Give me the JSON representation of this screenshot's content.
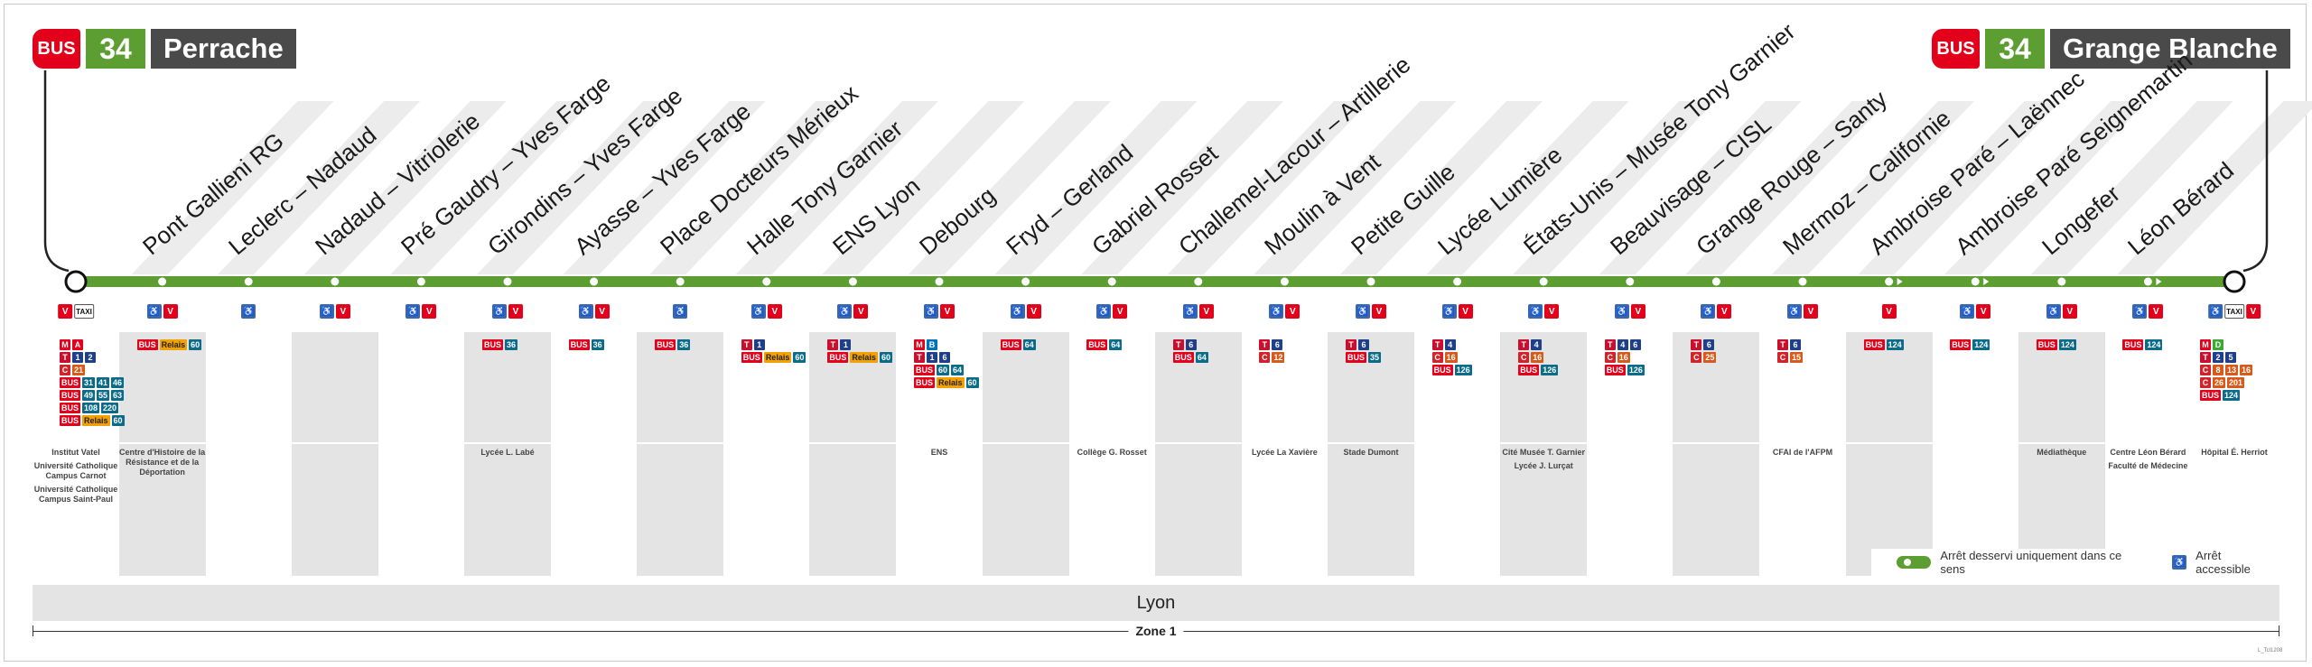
{
  "header_left": {
    "bus": "BUS",
    "line": "34",
    "destination": "Perrache"
  },
  "header_right": {
    "bus": "BUS",
    "line": "34",
    "destination": "Grange Blanche"
  },
  "colors": {
    "line": "#5c9e32",
    "bus": "#e2001a",
    "metro_A": "#e2001a",
    "metro_B": "#0072bc",
    "metro_D": "#3aaa35",
    "tram": "#c8102e",
    "access": "#3a66b0"
  },
  "terminus_left": {
    "connections": [
      [
        "M",
        "A"
      ],
      [
        "T",
        "1",
        "2"
      ],
      [
        "C",
        "21"
      ],
      [
        "BUS",
        "31",
        "41",
        "46"
      ],
      [
        "BUS",
        "49",
        "55",
        "63"
      ],
      [
        "BUS",
        "108",
        "220"
      ],
      [
        "BUS",
        "Relais",
        "60"
      ]
    ],
    "places": [
      "Institut Vatel",
      "Université Catholique Campus Carnot",
      "Université Catholique Campus Saint-Paul"
    ]
  },
  "terminus_right": {
    "connections": [
      [
        "M",
        "D"
      ],
      [
        "T",
        "2",
        "5"
      ],
      [
        "C",
        "8",
        "13",
        "16"
      ],
      [
        "C",
        "26",
        "201"
      ],
      [
        "BUS",
        "124"
      ]
    ],
    "places": [
      "Hôpital É. Herriot"
    ]
  },
  "stops": [
    {
      "name": "Pont Gallieni RG",
      "connections": [
        [
          "BUS",
          "Relais",
          "60"
        ]
      ],
      "places": [
        "Centre d'Histoire de la Résistance et de la Déportation"
      ]
    },
    {
      "name": "Leclerc – Nadaud",
      "connections": [],
      "places": []
    },
    {
      "name": "Nadaud – Vitriolerie",
      "connections": [],
      "places": []
    },
    {
      "name": "Pré Gaudry – Yves Farge",
      "connections": [],
      "places": []
    },
    {
      "name": "Girondins – Yves Farge",
      "connections": [
        [
          "BUS",
          "36"
        ]
      ],
      "places": [
        "Lycée L. Labé"
      ]
    },
    {
      "name": "Ayasse – Yves Farge",
      "connections": [
        [
          "BUS",
          "36"
        ]
      ],
      "places": []
    },
    {
      "name": "Place Docteurs Mérieux",
      "connections": [
        [
          "BUS",
          "36"
        ]
      ],
      "places": []
    },
    {
      "name": "Halle Tony Garnier",
      "connections": [
        [
          "T",
          "1"
        ],
        [
          "BUS",
          "Relais",
          "60"
        ]
      ],
      "places": []
    },
    {
      "name": "ENS Lyon",
      "connections": [
        [
          "T",
          "1"
        ],
        [
          "BUS",
          "Relais",
          "60"
        ]
      ],
      "places": []
    },
    {
      "name": "Debourg",
      "connections": [
        [
          "M",
          "B"
        ],
        [
          "T",
          "1",
          "6"
        ],
        [
          "BUS",
          "60",
          "64"
        ],
        [
          "BUS",
          "Relais",
          "60"
        ]
      ],
      "places": [
        "ENS"
      ]
    },
    {
      "name": "Fryd – Gerland",
      "connections": [
        [
          "BUS",
          "64"
        ]
      ],
      "places": []
    },
    {
      "name": "Gabriel Rosset",
      "connections": [
        [
          "BUS",
          "64"
        ]
      ],
      "places": [
        "Collège G. Rosset"
      ]
    },
    {
      "name": "Challemel-Lacour – Artillerie",
      "connections": [
        [
          "T",
          "6"
        ],
        [
          "BUS",
          "64"
        ]
      ],
      "places": []
    },
    {
      "name": "Moulin à Vent",
      "connections": [
        [
          "T",
          "6"
        ],
        [
          "C",
          "12"
        ]
      ],
      "places": [
        "Lycée La Xavière"
      ]
    },
    {
      "name": "Petite Guille",
      "connections": [
        [
          "T",
          "6"
        ],
        [
          "BUS",
          "35"
        ]
      ],
      "places": [
        "Stade Dumont"
      ]
    },
    {
      "name": "Lycée Lumière",
      "connections": [
        [
          "T",
          "4"
        ],
        [
          "C",
          "16"
        ],
        [
          "BUS",
          "126"
        ]
      ],
      "places": []
    },
    {
      "name": "États-Unis – Musée Tony Garnier",
      "connections": [
        [
          "T",
          "4"
        ],
        [
          "C",
          "16"
        ],
        [
          "BUS",
          "126"
        ]
      ],
      "places": [
        "Cité Musée T. Garnier",
        "Lycée J. Lurçat"
      ]
    },
    {
      "name": "Beauvisage – CISL",
      "connections": [
        [
          "T",
          "4",
          "6"
        ],
        [
          "C",
          "16"
        ],
        [
          "BUS",
          "126"
        ]
      ],
      "places": []
    },
    {
      "name": "Grange Rouge – Santy",
      "connections": [
        [
          "T",
          "6"
        ],
        [
          "C",
          "25"
        ]
      ],
      "places": []
    },
    {
      "name": "Mermoz – Californie",
      "connections": [
        [
          "T",
          "6"
        ],
        [
          "C",
          "15"
        ]
      ],
      "places": [
        "CFAI de l'AFPM"
      ]
    },
    {
      "name": "Ambroise Paré – Laënnec",
      "connections": [
        [
          "BUS",
          "124"
        ]
      ],
      "places": []
    },
    {
      "name": "Ambroise Paré Seignemartin",
      "connections": [
        [
          "BUS",
          "124"
        ]
      ],
      "places": []
    },
    {
      "name": "Longefer",
      "connections": [
        [
          "BUS",
          "124"
        ]
      ],
      "places": [
        "Médiathèque"
      ]
    },
    {
      "name": "Léon Bérard",
      "connections": [
        [
          "BUS",
          "124"
        ]
      ],
      "places": [
        "Centre Léon Bérard",
        "Faculté de Médecine"
      ]
    }
  ],
  "icon_rows": [
    [
      "velov",
      "taxi"
    ],
    [
      "access",
      "velov"
    ],
    [
      "access"
    ],
    [
      "access",
      "velov"
    ],
    [
      "access",
      "velov"
    ],
    [
      "access",
      "velov"
    ],
    [
      "access",
      "velov"
    ],
    [
      "access"
    ],
    [
      "access",
      "velov"
    ],
    [
      "access",
      "velov"
    ],
    [
      "access",
      "velov"
    ],
    [
      "access",
      "velov"
    ],
    [
      "access",
      "velov"
    ],
    [
      "access",
      "velov"
    ],
    [
      "access",
      "velov"
    ],
    [
      "access",
      "velov"
    ],
    [
      "access",
      "velov"
    ],
    [
      "access",
      "velov"
    ],
    [
      "access",
      "velov"
    ],
    [
      "access",
      "velov"
    ],
    [
      "access",
      "velov"
    ],
    [
      "velov"
    ],
    [
      "access",
      "velov"
    ],
    [
      "access",
      "velov"
    ],
    [
      "access",
      "velov"
    ],
    [
      "access",
      "taxi",
      "velov"
    ]
  ],
  "one_way_stops": [
    20,
    21,
    23
  ],
  "legend": {
    "oneway": "Arrêt desservi uniquement dans ce sens",
    "access": "Arrêt accessible"
  },
  "city": "Lyon",
  "zone": "Zone 1",
  "credit": "L_Tcl1208"
}
